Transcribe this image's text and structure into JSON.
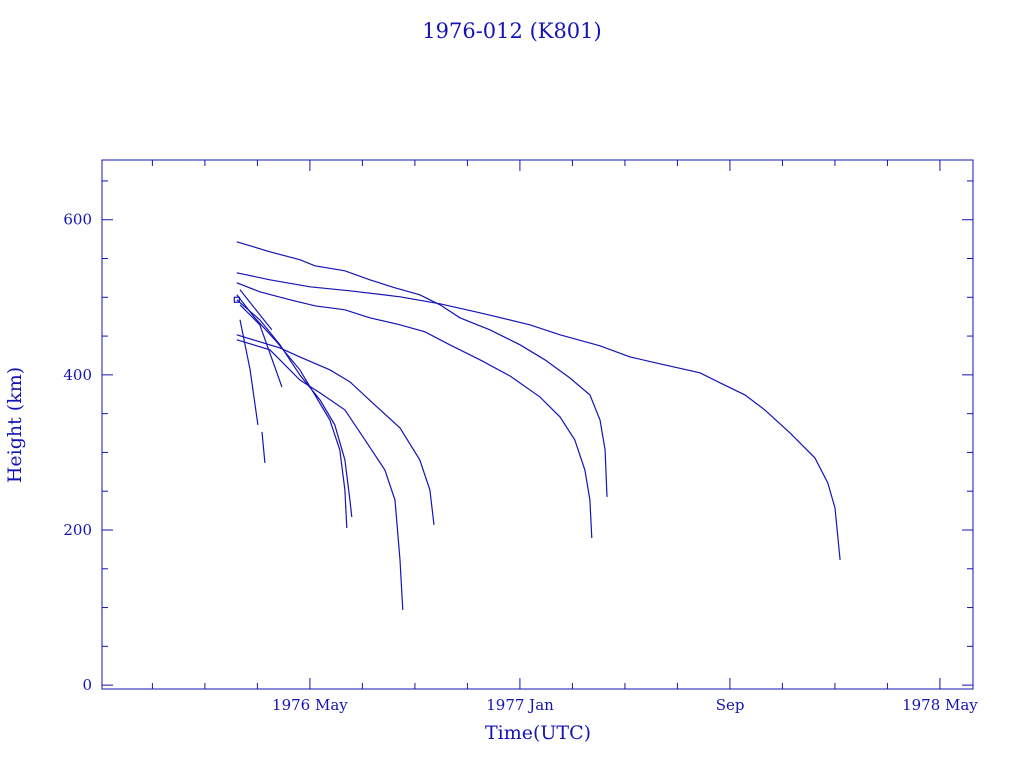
{
  "chart_data": {
    "type": "line",
    "title": "1976-012 (K801)",
    "xlabel": "Time(UTC)",
    "ylabel": "Height (km)",
    "x_units": "decimal year",
    "xlim": [
      1975.673,
      1978.438
    ],
    "ylim": [
      -5,
      677
    ],
    "grid": false,
    "color": "#1414b4",
    "x_ticks": [
      {
        "value": 1976.333,
        "label": "1976 May"
      },
      {
        "value": 1977.0,
        "label": "1977 Jan"
      },
      {
        "value": 1977.667,
        "label": "Sep"
      },
      {
        "value": 1978.333,
        "label": "1978 May"
      }
    ],
    "x_minor_step": 0.16667,
    "y_ticks": [
      {
        "value": 0,
        "label": "0"
      },
      {
        "value": 200,
        "label": "200"
      },
      {
        "value": 400,
        "label": "400"
      },
      {
        "value": 600,
        "label": "600"
      }
    ],
    "y_minor_step": 50,
    "series": [
      {
        "name": "track-1",
        "points": [
          [
            1976.101,
            571.6
          ],
          [
            1976.206,
            558.7
          ],
          [
            1976.301,
            548.4
          ],
          [
            1976.349,
            540.6
          ],
          [
            1976.444,
            534.2
          ],
          [
            1976.523,
            522.6
          ],
          [
            1976.603,
            512.3
          ],
          [
            1976.682,
            503.2
          ],
          [
            1976.746,
            490.3
          ],
          [
            1976.809,
            473.5
          ],
          [
            1976.904,
            458.1
          ],
          [
            1977.0,
            438.7
          ],
          [
            1977.079,
            419.4
          ],
          [
            1977.158,
            396.1
          ],
          [
            1977.222,
            374.2
          ],
          [
            1977.254,
            341.9
          ],
          [
            1977.27,
            303.2
          ],
          [
            1977.276,
            242.6
          ]
        ]
      },
      {
        "name": "track-2",
        "points": [
          [
            1976.101,
            531.6
          ],
          [
            1976.206,
            522.6
          ],
          [
            1976.333,
            513.5
          ],
          [
            1976.46,
            508.4
          ],
          [
            1976.619,
            500.6
          ],
          [
            1976.746,
            491.6
          ],
          [
            1976.873,
            480
          ],
          [
            1977.031,
            464.5
          ],
          [
            1977.127,
            451.6
          ],
          [
            1977.254,
            437.4
          ],
          [
            1977.349,
            423.2
          ],
          [
            1977.444,
            414.2
          ],
          [
            1977.571,
            402.6
          ],
          [
            1977.635,
            389.7
          ],
          [
            1977.714,
            374.2
          ],
          [
            1977.777,
            354.8
          ],
          [
            1977.857,
            325.2
          ],
          [
            1977.936,
            292.9
          ],
          [
            1977.977,
            260.6
          ],
          [
            1978.0,
            228.4
          ],
          [
            1978.016,
            161.3
          ]
        ]
      },
      {
        "name": "track-3",
        "points": [
          [
            1976.101,
            518.7
          ],
          [
            1976.174,
            507.1
          ],
          [
            1976.27,
            496.8
          ],
          [
            1976.349,
            489
          ],
          [
            1976.444,
            483.9
          ],
          [
            1976.523,
            473.5
          ],
          [
            1976.619,
            464.5
          ],
          [
            1976.698,
            455.5
          ],
          [
            1976.777,
            438.7
          ],
          [
            1976.873,
            419.4
          ],
          [
            1976.968,
            398.7
          ],
          [
            1977.063,
            371.6
          ],
          [
            1977.127,
            345.8
          ],
          [
            1977.174,
            316.1
          ],
          [
            1977.206,
            277.4
          ],
          [
            1977.222,
            238.7
          ],
          [
            1977.228,
            189.7
          ]
        ]
      },
      {
        "name": "track-4",
        "points": [
          [
            1976.101,
            451.6
          ],
          [
            1976.174,
            442.6
          ],
          [
            1976.238,
            434.8
          ],
          [
            1976.301,
            423.2
          ],
          [
            1976.396,
            406.5
          ],
          [
            1976.46,
            391
          ],
          [
            1976.539,
            361.3
          ],
          [
            1976.619,
            331.6
          ],
          [
            1976.682,
            290.3
          ],
          [
            1976.714,
            251.6
          ],
          [
            1976.727,
            206.5
          ]
        ]
      },
      {
        "name": "track-5",
        "points": [
          [
            1976.101,
            445.2
          ],
          [
            1976.206,
            432.3
          ],
          [
            1976.301,
            393.5
          ],
          [
            1976.365,
            376.8
          ],
          [
            1976.444,
            354.8
          ],
          [
            1976.508,
            316.1
          ],
          [
            1976.571,
            277.4
          ],
          [
            1976.603,
            238.7
          ],
          [
            1976.619,
            161.3
          ],
          [
            1976.628,
            96.8
          ]
        ]
      },
      {
        "name": "track-6",
        "points": [
          [
            1976.101,
            496.8
          ],
          [
            1976.174,
            471
          ],
          [
            1976.238,
            438.7
          ],
          [
            1976.301,
            400
          ],
          [
            1976.365,
            367.7
          ],
          [
            1976.412,
            335.5
          ],
          [
            1976.444,
            290.3
          ],
          [
            1976.46,
            238.7
          ],
          [
            1976.466,
            216.8
          ]
        ]
      },
      {
        "name": "track-7",
        "points": [
          [
            1976.101,
            503.2
          ],
          [
            1976.158,
            473.5
          ],
          [
            1976.222,
            445.2
          ],
          [
            1976.301,
            406.5
          ],
          [
            1976.349,
            374.2
          ],
          [
            1976.396,
            341.9
          ],
          [
            1976.428,
            303.2
          ],
          [
            1976.444,
            251.6
          ],
          [
            1976.45,
            202.6
          ]
        ]
      },
      {
        "name": "track-8",
        "points": [
          [
            1976.111,
            490.3
          ],
          [
            1976.174,
            464.5
          ],
          [
            1976.244,
            384.5
          ]
        ]
      },
      {
        "name": "track-9",
        "points": [
          [
            1976.111,
            509.7
          ],
          [
            1976.212,
            458.1
          ]
        ]
      },
      {
        "name": "track-10",
        "points": [
          [
            1976.111,
            471
          ],
          [
            1976.143,
            406.5
          ],
          [
            1976.168,
            335.5
          ]
        ]
      },
      {
        "name": "track-11",
        "points": [
          [
            1976.181,
            326.5
          ],
          [
            1976.19,
            286.5
          ]
        ]
      }
    ],
    "markers": [
      [
        1976.101,
        496.8
      ]
    ]
  }
}
